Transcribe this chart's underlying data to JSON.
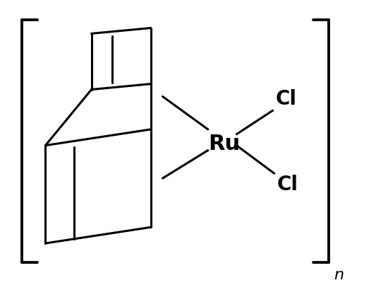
{
  "bg_color": "#ffffff",
  "line_color": "#000000",
  "line_width": 2.2,
  "text_color": "#000000",
  "ru_label": "Ru",
  "cl1_label": "Cl",
  "cl2_label": "Cl",
  "n_label": "n",
  "ru_fontsize": 22,
  "cl_fontsize": 20,
  "n_fontsize": 16,
  "figsize": [
    5.5,
    4.03
  ],
  "dpi": 100
}
